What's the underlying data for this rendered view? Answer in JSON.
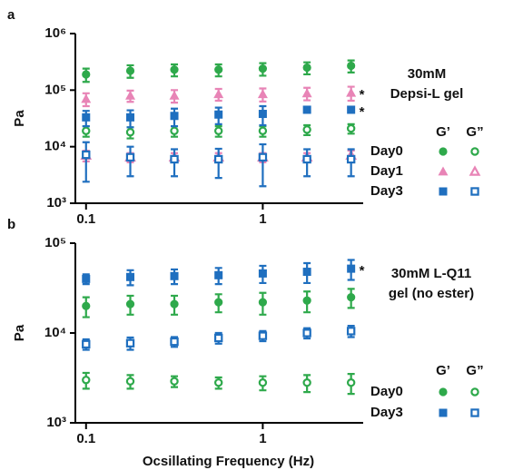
{
  "chart_data": [
    {
      "type": "scatter",
      "panel_label": "a",
      "y_label": "Pa",
      "log_x": true,
      "log_y": true,
      "legend_title": [
        "30mM",
        "Depsi-L gel"
      ],
      "legend_columns": [
        "G’",
        "G”"
      ],
      "x": [
        0.1,
        0.178,
        0.316,
        0.562,
        1,
        1.78,
        3.16
      ],
      "xlim": [
        0.087,
        3.7
      ],
      "xticks": [
        0.1,
        1
      ],
      "ylim": [
        1000,
        1000000
      ],
      "yticks": [
        {
          "value": 1000,
          "label": "10³"
        },
        {
          "value": 10000,
          "label": "10⁴"
        },
        {
          "value": 100000,
          "label": "10⁵"
        },
        {
          "value": 1000000,
          "label": "10⁶"
        }
      ],
      "series": [
        {
          "name": "Day0",
          "color": "#2ea94b",
          "marker": "circle",
          "storage": [
            190000,
            220000,
            230000,
            230000,
            240000,
            250000,
            270000
          ],
          "storage_errors": [
            50000,
            55000,
            55000,
            55000,
            60000,
            60000,
            65000
          ],
          "loss": [
            19000,
            18000,
            19000,
            19000,
            19000,
            20000,
            21000
          ],
          "loss_errors": [
            4000,
            4000,
            4000,
            4000,
            4000,
            4000,
            4000
          ]
        },
        {
          "name": "Day1",
          "color": "#e884b6",
          "marker": "triangle",
          "note": "*",
          "storage": [
            70000,
            80000,
            80000,
            85000,
            85000,
            88000,
            90000
          ],
          "storage_errors": [
            18000,
            18000,
            20000,
            20000,
            22000,
            22000,
            25000
          ],
          "loss": [
            7000,
            6500,
            6500,
            6500,
            6500,
            6500,
            7000
          ],
          "loss_errors": [
            1500,
            1200,
            1200,
            1200,
            1200,
            1200,
            1500
          ]
        },
        {
          "name": "Day3",
          "color": "#1f6fbf",
          "marker": "square",
          "note": "*",
          "storage": [
            33000,
            33000,
            35000,
            37000,
            38000,
            45000,
            45000
          ],
          "storage_errors": [
            10000,
            11000,
            12000,
            12000,
            14000,
            5000,
            5000
          ],
          "loss": [
            7200,
            6500,
            6000,
            6000,
            6500,
            6000,
            6000
          ],
          "loss_errors": [
            4800,
            3500,
            3000,
            3200,
            4500,
            3000,
            3000
          ]
        }
      ]
    },
    {
      "type": "scatter",
      "panel_label": "b",
      "y_label": "Pa",
      "log_x": true,
      "log_y": true,
      "x_label": "Ocsillating Frequency (Hz)",
      "legend_title": [
        "30mM L-Q11",
        "gel (no ester)"
      ],
      "legend_columns": [
        "G’",
        "G”"
      ],
      "x": [
        0.1,
        0.178,
        0.316,
        0.562,
        1,
        1.78,
        3.16
      ],
      "xlim": [
        0.087,
        3.7
      ],
      "xticks": [
        0.1,
        1
      ],
      "ylim": [
        1000,
        100000
      ],
      "yticks": [
        {
          "value": 1000,
          "label": "10³"
        },
        {
          "value": 10000,
          "label": "10⁴"
        },
        {
          "value": 100000,
          "label": "10⁵"
        }
      ],
      "series": [
        {
          "name": "Day0",
          "color": "#2ea94b",
          "marker": "circle",
          "storage": [
            20000,
            21000,
            21000,
            22000,
            22000,
            23000,
            25000
          ],
          "storage_errors": [
            5000,
            5000,
            5000,
            5000,
            6000,
            6000,
            6000
          ],
          "loss": [
            3000,
            2900,
            2900,
            2800,
            2800,
            2800,
            2800
          ],
          "loss_errors": [
            600,
            500,
            400,
            400,
            500,
            600,
            700
          ]
        },
        {
          "name": "Day3",
          "color": "#1f6fbf",
          "marker": "square",
          "note": "*",
          "storage": [
            40000,
            42000,
            43000,
            44000,
            46000,
            48000,
            52000
          ],
          "storage_errors": [
            5000,
            8000,
            8000,
            9000,
            10000,
            12000,
            13000
          ],
          "loss": [
            7500,
            7700,
            8000,
            8800,
            9300,
            10000,
            10500
          ],
          "loss_errors": [
            1000,
            1200,
            1000,
            1200,
            1200,
            1300,
            1500
          ]
        }
      ]
    }
  ]
}
